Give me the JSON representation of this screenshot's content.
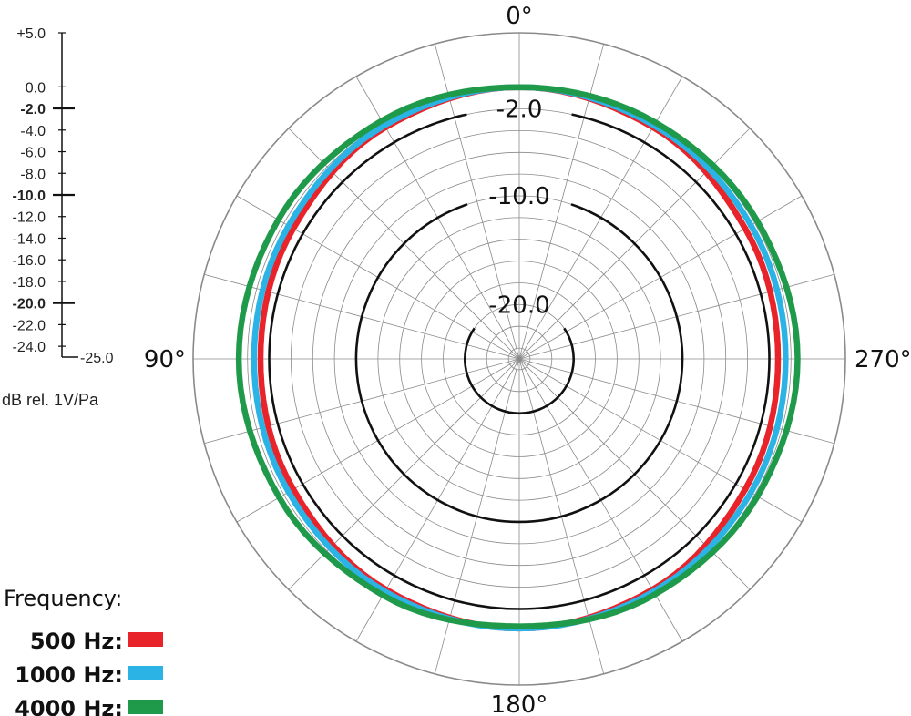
{
  "chart_data": {
    "type": "polar",
    "unit_label": "dB rel. 1V/Pa",
    "rlim": [
      -25.0,
      5.0
    ],
    "scale_ticks": [
      {
        "value": 5.0,
        "label": "+5.0",
        "bold": false
      },
      {
        "value": 0.0,
        "label": "0.0",
        "bold": false
      },
      {
        "value": -2.0,
        "label": "-2.0",
        "bold": true
      },
      {
        "value": -4.0,
        "label": "-4.0",
        "bold": false
      },
      {
        "value": -6.0,
        "label": "-6.0",
        "bold": false
      },
      {
        "value": -8.0,
        "label": "-8.0",
        "bold": false
      },
      {
        "value": -10.0,
        "label": "-10.0",
        "bold": true
      },
      {
        "value": -12.0,
        "label": "-12.0",
        "bold": false
      },
      {
        "value": -14.0,
        "label": "-14.0",
        "bold": false
      },
      {
        "value": -16.0,
        "label": "-16.0",
        "bold": false
      },
      {
        "value": -18.0,
        "label": "-18.0",
        "bold": false
      },
      {
        "value": -20.0,
        "label": "-20.0",
        "bold": true
      },
      {
        "value": -22.0,
        "label": "-22.0",
        "bold": false
      },
      {
        "value": -24.0,
        "label": "-24.0",
        "bold": false
      },
      {
        "value": -25.0,
        "label": "-25.0",
        "bold": false
      }
    ],
    "ring_labels": [
      "-2.0",
      "-10.0",
      "-20.0"
    ],
    "angle_labels": [
      {
        "deg": 0,
        "label": "0°"
      },
      {
        "deg": 90,
        "label": "90°"
      },
      {
        "deg": 180,
        "label": "180°"
      },
      {
        "deg": 270,
        "label": "270°"
      }
    ],
    "legend_title": "Frequency:",
    "series": [
      {
        "name": "500 Hz:",
        "color": "#e8232a",
        "angles": [
          0,
          30,
          60,
          90,
          120,
          150,
          180,
          210,
          240,
          270,
          300,
          330,
          360
        ],
        "values": [
          0.0,
          -0.4,
          -1.0,
          -1.2,
          -1.0,
          -0.5,
          -0.2,
          -0.5,
          -1.0,
          -1.2,
          -1.0,
          -0.4,
          0.0
        ]
      },
      {
        "name": "1000 Hz:",
        "color": "#2bb3e6",
        "angles": [
          0,
          30,
          60,
          90,
          120,
          150,
          180,
          210,
          240,
          270,
          300,
          330,
          360
        ],
        "values": [
          0.0,
          -0.2,
          -0.5,
          -0.6,
          -0.5,
          -0.3,
          -0.2,
          -0.3,
          -0.4,
          -0.5,
          -0.4,
          -0.2,
          0.0
        ]
      },
      {
        "name": "4000 Hz:",
        "color": "#1f9a4a",
        "angles": [
          0,
          30,
          60,
          90,
          120,
          150,
          180,
          210,
          240,
          270,
          300,
          330,
          360
        ],
        "values": [
          0.0,
          0.3,
          0.6,
          0.8,
          0.5,
          0.1,
          -0.4,
          0.0,
          0.3,
          0.6,
          0.3,
          0.1,
          0.0
        ]
      }
    ]
  }
}
